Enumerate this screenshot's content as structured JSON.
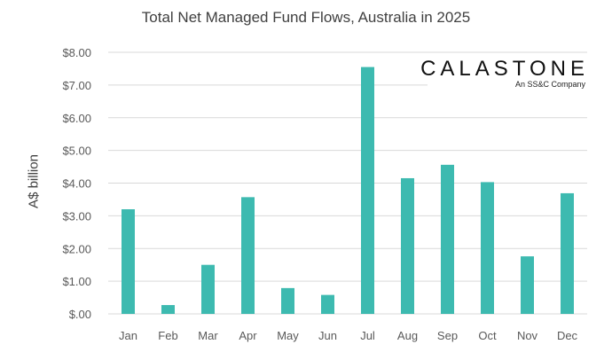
{
  "chart_data": {
    "type": "bar",
    "title": "Total Net Managed Fund Flows, Australia in 2025",
    "xlabel": "",
    "ylabel": "A$ billion",
    "ylim": [
      0,
      8
    ],
    "yticks": [
      0,
      1,
      2,
      3,
      4,
      5,
      6,
      7,
      8
    ],
    "ytick_labels": [
      "$.00",
      "$1.00",
      "$2.00",
      "$3.00",
      "$4.00",
      "$5.00",
      "$6.00",
      "$7.00",
      "$8.00"
    ],
    "categories": [
      "Jan",
      "Feb",
      "Mar",
      "Apr",
      "May",
      "Jun",
      "Jul",
      "Aug",
      "Sep",
      "Oct",
      "Nov",
      "Dec"
    ],
    "values": [
      3.2,
      0.27,
      1.5,
      3.57,
      0.79,
      0.58,
      7.55,
      4.15,
      4.56,
      4.03,
      1.76,
      3.69
    ],
    "grid": true,
    "bar_color": "#3dbab0"
  },
  "logo": {
    "brand": "CALASTONE",
    "sub": "An SS&C Company"
  }
}
